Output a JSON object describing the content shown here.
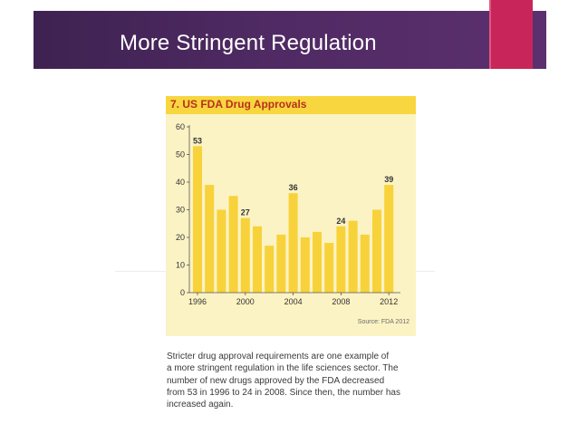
{
  "slide": {
    "title": "More Stringent Regulation"
  },
  "chart_data": {
    "type": "bar",
    "title": "7. US FDA Drug Approvals",
    "x": [
      1996,
      1997,
      1998,
      1999,
      2000,
      2001,
      2002,
      2003,
      2004,
      2005,
      2006,
      2007,
      2008,
      2009,
      2010,
      2011,
      2012
    ],
    "values": [
      53,
      39,
      30,
      35,
      27,
      24,
      17,
      21,
      36,
      20,
      22,
      18,
      24,
      26,
      21,
      30,
      39
    ],
    "data_labels": [
      {
        "x": 1996,
        "label": "53"
      },
      {
        "x": 2000,
        "label": "27"
      },
      {
        "x": 2004,
        "label": "36"
      },
      {
        "x": 2008,
        "label": "24"
      },
      {
        "x": 2012,
        "label": "39"
      }
    ],
    "x_ticks": [
      1996,
      2000,
      2004,
      2008,
      2012
    ],
    "y_ticks": [
      0,
      10,
      20,
      30,
      40,
      50,
      60
    ],
    "ylim": [
      0,
      60
    ],
    "grid": false,
    "source": "Source: FDA 2012",
    "colors": {
      "bar": "#f7d23a",
      "background": "#fcf3c4",
      "header": "#f7d640",
      "title": "#b8301a"
    }
  },
  "caption": {
    "lines": [
      "Stricter drug approval requirements are one example of",
      "a more stringent regulation in the life sciences sector. The",
      "number of new drugs approved by the FDA decreased",
      "from 53 in 1996 to 24 in 2008. Since then, the number has",
      "increased again."
    ]
  }
}
